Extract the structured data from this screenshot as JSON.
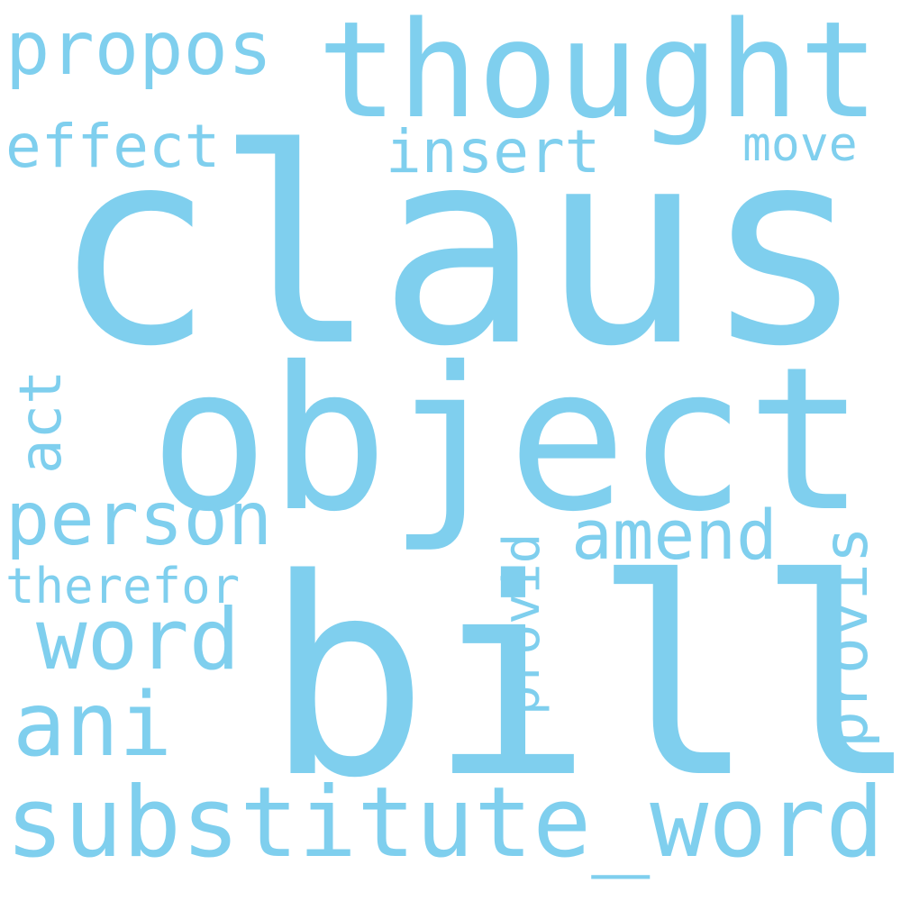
{
  "word_cloud": {
    "color": "#7fcfee",
    "words": {
      "claus": "claus",
      "bill": "bill",
      "object": "object",
      "thought": "thought",
      "substitute_word": "substitute_word",
      "propos": "propos",
      "effect": "effect",
      "insert": "insert",
      "move": "move",
      "person": "person",
      "amend": "amend",
      "word": "word",
      "ani": "ani",
      "therefor": "therefor",
      "act": "act",
      "provid": "provid",
      "provis": "provis"
    }
  }
}
